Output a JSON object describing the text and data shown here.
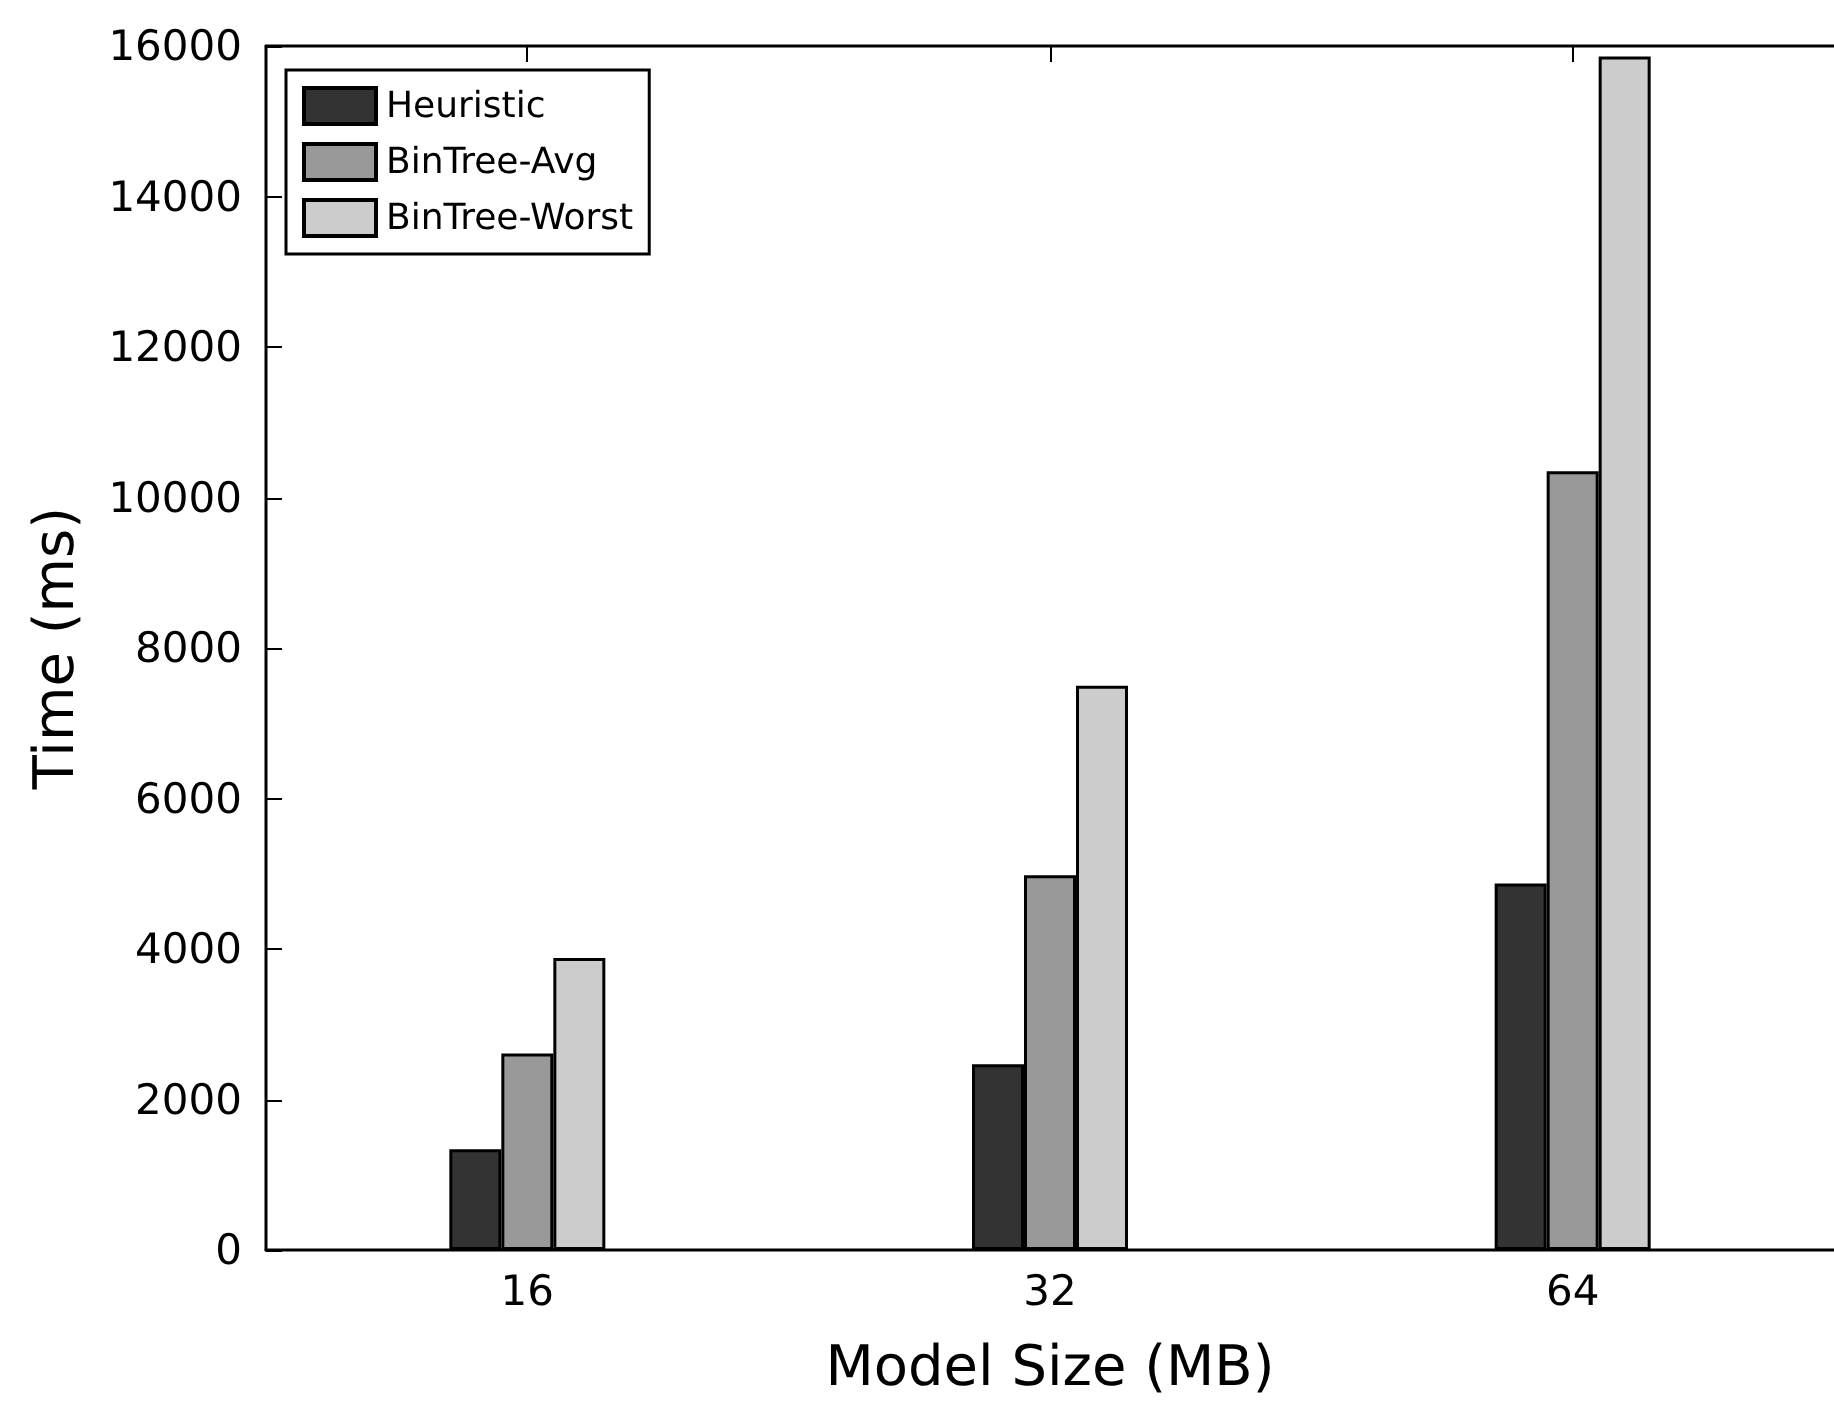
{
  "chart_data": {
    "type": "bar",
    "xlabel": "Model Size (MB)",
    "ylabel": "Time (ms)",
    "categories": [
      "16",
      "32",
      "64"
    ],
    "series": [
      {
        "name": "Heuristic",
        "color": "#333333",
        "values": [
          1340,
          2470,
          4870
        ]
      },
      {
        "name": "BinTree-Avg",
        "color": "#999999",
        "values": [
          2610,
          4980,
          10350
        ]
      },
      {
        "name": "BinTree-Worst",
        "color": "#cccccc",
        "values": [
          3880,
          7500,
          15860
        ]
      }
    ],
    "ylim": [
      0,
      16000
    ],
    "yticks": [
      0,
      2000,
      4000,
      6000,
      8000,
      10000,
      12000,
      14000,
      16000
    ],
    "grid": false,
    "legend": "top left"
  }
}
